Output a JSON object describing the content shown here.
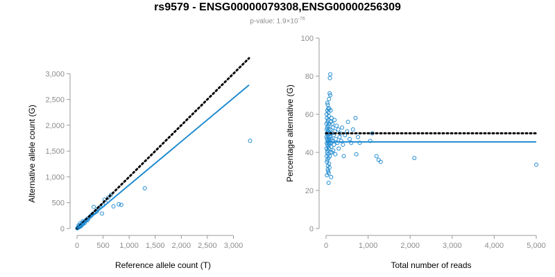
{
  "figure": {
    "title": "rs9579 - ENSG00000079308,ENSG00000256309",
    "subtitle_prefix": "p-value: 1.9×10",
    "subtitle_exponent": "-76"
  },
  "colors": {
    "points": "#1f8ad1",
    "fit_line": "#1f8ad1",
    "reference_line": "#000000",
    "axes": "#999999",
    "tick_text": "#8c8c8c"
  },
  "chart_data": [
    {
      "type": "scatter",
      "title": "",
      "xlabel": "Reference allele count (T)",
      "ylabel": "Alternative allele count (G)",
      "xlim": [
        0,
        3300
      ],
      "ylim": [
        0,
        3300
      ],
      "xticks": [
        0,
        500,
        1000,
        1500,
        2000,
        2500,
        3000
      ],
      "xtick_labels": [
        "0",
        "500",
        "1,000",
        "1,500",
        "2,000",
        "2,500",
        "3,000"
      ],
      "yticks": [
        0,
        500,
        1000,
        1500,
        2000,
        2500,
        3000
      ],
      "ytick_labels": [
        "0",
        "500",
        "1,000",
        "1,500",
        "2,000",
        "2,500",
        "3,000"
      ],
      "reference_line": {
        "style": "dotted",
        "x": [
          0,
          3300
        ],
        "y": [
          0,
          3300
        ]
      },
      "fit_line": {
        "style": "solid",
        "x": [
          0,
          3300
        ],
        "y": [
          0,
          2780
        ]
      },
      "points": {
        "x": [
          5,
          10,
          15,
          20,
          25,
          30,
          35,
          40,
          45,
          50,
          55,
          60,
          65,
          70,
          80,
          90,
          100,
          110,
          120,
          130,
          150,
          160,
          180,
          200,
          220,
          250,
          280,
          300,
          330,
          350,
          400,
          450,
          500,
          530,
          600,
          650,
          700,
          800,
          850,
          1300,
          3320,
          30,
          60,
          90,
          120,
          40,
          70,
          110,
          150,
          200,
          260,
          320,
          380,
          420,
          480,
          550
        ],
        "y": [
          5,
          8,
          14,
          20,
          22,
          30,
          32,
          40,
          42,
          48,
          50,
          60,
          55,
          70,
          75,
          85,
          95,
          100,
          115,
          120,
          140,
          150,
          170,
          190,
          200,
          230,
          260,
          280,
          300,
          320,
          380,
          420,
          450,
          560,
          600,
          650,
          430,
          470,
          460,
          780,
          1700,
          60,
          100,
          60,
          90,
          25,
          40,
          140,
          110,
          160,
          240,
          420,
          330,
          400,
          290,
          500
        ]
      }
    },
    {
      "type": "scatter",
      "title": "",
      "xlabel": "Total number of reads",
      "ylabel": "Percentage alternative (G)",
      "xlim": [
        0,
        5000
      ],
      "ylim": [
        0,
        100
      ],
      "xticks": [
        0,
        1000,
        2000,
        3000,
        4000,
        5000
      ],
      "xtick_labels": [
        "0",
        "1,000",
        "2,000",
        "3,000",
        "4,000",
        "5,000"
      ],
      "yticks": [
        0,
        20,
        40,
        60,
        80,
        100
      ],
      "ytick_labels": [
        "0",
        "20",
        "40",
        "60",
        "80",
        "100"
      ],
      "reference_line": {
        "style": "dotted",
        "y": 50
      },
      "fit_line": {
        "style": "solid",
        "y": 45.5
      },
      "points": {
        "x": [
          10,
          10,
          12,
          14,
          15,
          16,
          18,
          20,
          20,
          22,
          25,
          25,
          28,
          30,
          30,
          32,
          35,
          35,
          38,
          40,
          40,
          42,
          45,
          45,
          48,
          50,
          50,
          52,
          55,
          55,
          58,
          60,
          60,
          62,
          65,
          68,
          70,
          70,
          72,
          75,
          78,
          80,
          80,
          85,
          88,
          90,
          95,
          100,
          100,
          105,
          110,
          115,
          120,
          125,
          130,
          140,
          150,
          160,
          170,
          180,
          190,
          200,
          210,
          220,
          230,
          250,
          270,
          290,
          300,
          320,
          340,
          360,
          380,
          400,
          420,
          450,
          500,
          520,
          560,
          600,
          640,
          700,
          720,
          760,
          800,
          1050,
          1100,
          1200,
          1250,
          1300,
          2100,
          5000,
          60,
          80,
          100,
          110,
          120,
          130,
          140,
          150,
          20,
          30,
          40,
          50
        ],
        "y": [
          48,
          55,
          42,
          60,
          38,
          52,
          45,
          50,
          35,
          58,
          47,
          40,
          53,
          62,
          44,
          36,
          49,
          56,
          41,
          46,
          65,
          33,
          51,
          39,
          57,
          43,
          54,
          30,
          48,
          61,
          37,
          45,
          52,
          29,
          59,
          42,
          47,
          68,
          34,
          55,
          63,
          50,
          44,
          71,
          38,
          79,
          48,
          45,
          81,
          52,
          40,
          56,
          47,
          43,
          58,
          50,
          46,
          53,
          41,
          49,
          44,
          57,
          51,
          39,
          47,
          54,
          45,
          52,
          42,
          48,
          50,
          46,
          53,
          44,
          38,
          49,
          51,
          56,
          47,
          45,
          52,
          58,
          39,
          48,
          45,
          46,
          50,
          38,
          36,
          35,
          37,
          33.5,
          24,
          32,
          70,
          62,
          27,
          58,
          40,
          55,
          28,
          66,
          31,
          63
        ]
      }
    }
  ]
}
